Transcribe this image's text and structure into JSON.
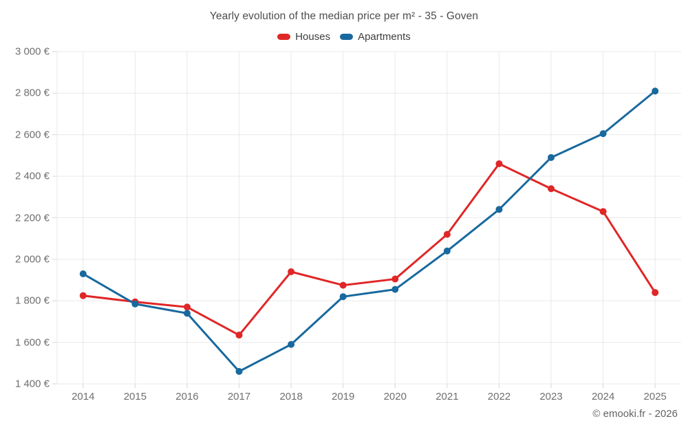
{
  "chart": {
    "title": "Yearly evolution of the median price per m² - 35 - Goven",
    "credit": "© emooki.fr - 2026"
  },
  "chart_data": {
    "type": "line",
    "title": "Yearly evolution of the median price per m² - 35 - Goven",
    "categories": [
      "2014",
      "2015",
      "2016",
      "2017",
      "2018",
      "2019",
      "2020",
      "2021",
      "2022",
      "2023",
      "2024",
      "2025"
    ],
    "series": [
      {
        "name": "Houses",
        "color": "#e02626",
        "values": [
          1825,
          1795,
          1770,
          1635,
          1940,
          1875,
          1905,
          2120,
          2460,
          2340,
          2230,
          1840
        ]
      },
      {
        "name": "Apartments",
        "color": "#17699e",
        "values": [
          1930,
          1785,
          1740,
          1460,
          1590,
          1820,
          1855,
          2040,
          2240,
          2490,
          2605,
          2810
        ]
      }
    ],
    "xlabel": "",
    "ylabel": "",
    "ylim": [
      1400,
      3000
    ],
    "y_ticks": [
      1400,
      1600,
      1800,
      2000,
      2200,
      2400,
      2600,
      2800,
      3000
    ],
    "y_tick_suffix": " €",
    "grid": true,
    "legend_position": "top",
    "marker_radius": 5,
    "line_width": 3
  },
  "colors": {
    "background": "#ffffff",
    "gridline": "#e9e9e9",
    "tick": "#d6d6d6",
    "title_text": "#4c4c4c",
    "legend_text": "#3d3d3d",
    "axis_text": "#6f6f6f",
    "credit_text": "#636363"
  }
}
